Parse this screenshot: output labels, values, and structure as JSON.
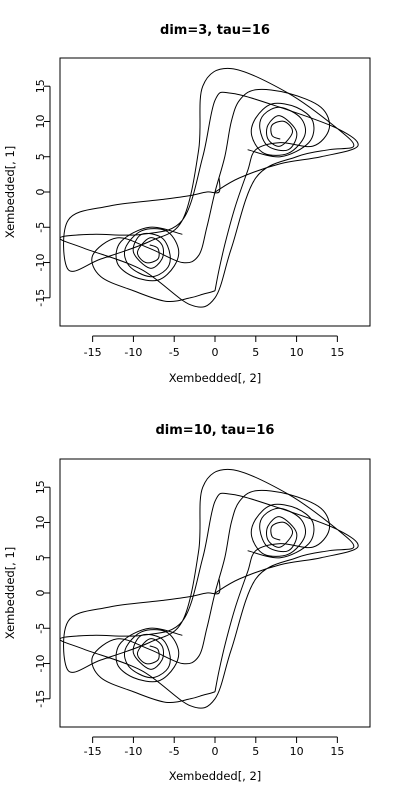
{
  "chart_data": [
    {
      "type": "line",
      "title": "dim=3, tau=16",
      "xlabel": "Xembedded[, 2]",
      "ylabel": "Xembedded[, 1]",
      "xlim": [
        -19,
        19
      ],
      "ylim": [
        -19,
        19
      ],
      "xticks": [
        -15,
        -10,
        -5,
        0,
        5,
        10,
        15
      ],
      "yticks": [
        -15,
        -10,
        -5,
        0,
        5,
        10,
        15
      ],
      "grid": false,
      "series_color": "#000000",
      "series": [
        {
          "x": [
            0,
            3,
            8,
            13,
            17.5,
            15,
            8,
            2,
            0,
            -1.5,
            -4,
            -9,
            -15,
            -19,
            -16,
            -9,
            -3,
            0,
            2,
            5,
            10,
            14,
            17,
            15,
            9,
            2,
            -1.5,
            -2,
            -4,
            -8,
            -14,
            -18,
            -18,
            -13,
            -6,
            -3,
            -1,
            0.5,
            0.5
          ],
          "y": [
            0,
            2,
            4,
            5,
            6.5,
            9,
            12,
            14,
            13,
            5,
            -4,
            -6,
            -6,
            -6.5,
            -8,
            -11,
            -16,
            -15,
            -8,
            2,
            5,
            6,
            6.5,
            9,
            14,
            17.5,
            15,
            6,
            -4,
            -7,
            -9.5,
            -11,
            -4,
            -2,
            -1,
            -0.5,
            0,
            0,
            2
          ]
        },
        {
          "x": [
            0,
            0.5,
            1.3,
            2.5,
            4,
            5,
            8,
            12,
            14,
            13,
            9,
            5,
            3,
            2,
            1.2,
            0,
            -1,
            -2,
            -4,
            -8,
            -12,
            -15,
            -14,
            -10,
            -6,
            -3,
            -1.5,
            -0.5,
            0
          ],
          "y": [
            -14,
            -11,
            -7,
            -2,
            3,
            6,
            7,
            6.5,
            9,
            12,
            14,
            14.5,
            13,
            10,
            5,
            0,
            -5,
            -9,
            -10,
            -8,
            -6.5,
            -9,
            -12,
            -14,
            -15.5,
            -15,
            -14.5,
            -14.2,
            -14
          ]
        },
        {
          "x": [
            4,
            8,
            11.5,
            12,
            10,
            7,
            5,
            4.5,
            6,
            9,
            11,
            10.5,
            8,
            6,
            5.5,
            6.5,
            9,
            10,
            8,
            6.5,
            6.5,
            8,
            9.5,
            8.5,
            7,
            7,
            8
          ],
          "y": [
            6,
            5,
            7,
            10,
            12,
            12.5,
            10.5,
            8,
            5.5,
            5.5,
            8,
            10.5,
            12,
            11,
            9,
            6.5,
            6,
            8.5,
            10.8,
            9.5,
            7.5,
            6.5,
            8.5,
            10,
            9.5,
            8,
            7.5
          ]
        },
        {
          "x": [
            -4,
            -8,
            -11.5,
            -12,
            -10,
            -7,
            -5,
            -4.5,
            -6,
            -9,
            -11,
            -10.5,
            -8,
            -6,
            -5.5,
            -6.5,
            -9,
            -10,
            -8,
            -6.5,
            -6.5,
            -8,
            -9.5,
            -8.5,
            -7,
            -7,
            -8
          ],
          "y": [
            -6,
            -5,
            -7,
            -10,
            -12,
            -12.5,
            -10.5,
            -8,
            -5.5,
            -5.5,
            -8,
            -10.5,
            -12,
            -11,
            -9,
            -6.5,
            -6,
            -8.5,
            -10.8,
            -9.5,
            -7.5,
            -6.5,
            -8.5,
            -10,
            -9.5,
            -8,
            -7.5
          ]
        }
      ]
    },
    {
      "type": "line",
      "title": "dim=10, tau=16",
      "xlabel": "Xembedded[, 2]",
      "ylabel": "Xembedded[, 1]",
      "xlim": [
        -19,
        19
      ],
      "ylim": [
        -19,
        19
      ],
      "xticks": [
        -15,
        -10,
        -5,
        0,
        5,
        10,
        15
      ],
      "yticks": [
        -15,
        -10,
        -5,
        0,
        5,
        10,
        15
      ],
      "grid": false,
      "series_color": "#000000",
      "series": [
        {
          "x": [
            0,
            3,
            8,
            13,
            17.5,
            15,
            8,
            2,
            0,
            -1.5,
            -4,
            -9,
            -15,
            -19,
            -16,
            -9,
            -3,
            0,
            2,
            5,
            10,
            14,
            17,
            15,
            9,
            2,
            -1.5,
            -2,
            -4,
            -8,
            -14,
            -18,
            -18,
            -13,
            -6,
            -3,
            -1,
            0.5,
            0.5
          ],
          "y": [
            0,
            2,
            4,
            5,
            6.5,
            9,
            12,
            14,
            13,
            5,
            -4,
            -6,
            -6,
            -6.5,
            -8,
            -11,
            -16,
            -15,
            -8,
            2,
            5,
            6,
            6.5,
            9,
            14,
            17.5,
            15,
            6,
            -4,
            -7,
            -9.5,
            -11,
            -4,
            -2,
            -1,
            -0.5,
            0,
            0,
            2
          ]
        },
        {
          "x": [
            0,
            0.5,
            1.3,
            2.5,
            4,
            5,
            8,
            12,
            14,
            13,
            9,
            5,
            3,
            2,
            1.2,
            0,
            -1,
            -2,
            -4,
            -8,
            -12,
            -15,
            -14,
            -10,
            -6,
            -3,
            -1.5,
            -0.5,
            0
          ],
          "y": [
            -14,
            -11,
            -7,
            -2,
            3,
            6,
            7,
            6.5,
            9,
            12,
            14,
            14.5,
            13,
            10,
            5,
            0,
            -5,
            -9,
            -10,
            -8,
            -6.5,
            -9,
            -12,
            -14,
            -15.5,
            -15,
            -14.5,
            -14.2,
            -14
          ]
        },
        {
          "x": [
            4,
            8,
            11.5,
            12,
            10,
            7,
            5,
            4.5,
            6,
            9,
            11,
            10.5,
            8,
            6,
            5.5,
            6.5,
            9,
            10,
            8,
            6.5,
            6.5,
            8,
            9.5,
            8.5,
            7,
            7,
            8
          ],
          "y": [
            6,
            5,
            7,
            10,
            12,
            12.5,
            10.5,
            8,
            5.5,
            5.5,
            8,
            10.5,
            12,
            11,
            9,
            6.5,
            6,
            8.5,
            10.8,
            9.5,
            7.5,
            6.5,
            8.5,
            10,
            9.5,
            8,
            7.5
          ]
        },
        {
          "x": [
            -4,
            -8,
            -11.5,
            -12,
            -10,
            -7,
            -5,
            -4.5,
            -6,
            -9,
            -11,
            -10.5,
            -8,
            -6,
            -5.5,
            -6.5,
            -9,
            -10,
            -8,
            -6.5,
            -6.5,
            -8,
            -9.5,
            -8.5,
            -7,
            -7,
            -8
          ],
          "y": [
            -6,
            -5,
            -7,
            -10,
            -12,
            -12.5,
            -10.5,
            -8,
            -5.5,
            -5.5,
            -8,
            -10.5,
            -12,
            -11,
            -9,
            -6.5,
            -6,
            -8.5,
            -10.8,
            -9.5,
            -7.5,
            -6.5,
            -8.5,
            -10,
            -9.5,
            -8,
            -7.5
          ]
        }
      ]
    }
  ]
}
